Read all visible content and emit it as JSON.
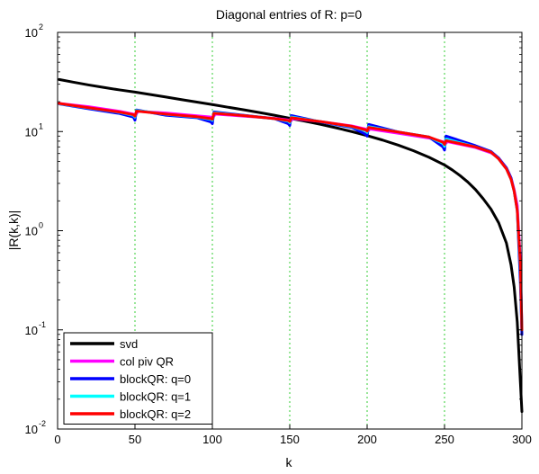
{
  "chart_data": {
    "type": "line",
    "title": "Diagonal entries of R: p=0",
    "xlabel": "k",
    "ylabel": "|R(k,k)|",
    "xlim": [
      0,
      300
    ],
    "ylim": [
      0.01,
      100
    ],
    "yscale": "log",
    "x_ticks": [
      0,
      50,
      100,
      150,
      200,
      250,
      300
    ],
    "y_ticks": [
      {
        "base": "10",
        "exp": "-2",
        "value": 0.01
      },
      {
        "base": "10",
        "exp": "-1",
        "value": 0.1
      },
      {
        "base": "10",
        "exp": "0",
        "value": 1
      },
      {
        "base": "10",
        "exp": "1",
        "value": 10
      },
      {
        "base": "10",
        "exp": "2",
        "value": 100
      }
    ],
    "vlines": [
      50,
      100,
      150,
      200,
      250
    ],
    "vline_color": "#33cc33",
    "legend_position": "bottom-left",
    "series": [
      {
        "name": "svd",
        "color": "#000000",
        "x": [
          1,
          10,
          20,
          30,
          40,
          50,
          60,
          70,
          80,
          90,
          100,
          110,
          120,
          130,
          140,
          150,
          160,
          170,
          180,
          190,
          200,
          210,
          220,
          230,
          240,
          250,
          255,
          260,
          265,
          270,
          275,
          280,
          285,
          290,
          293,
          295,
          297,
          298,
          299,
          300
        ],
        "y": [
          33.5,
          31.5,
          29.5,
          27.8,
          26.3,
          25.0,
          23.6,
          22.3,
          21.0,
          19.8,
          18.7,
          17.6,
          16.6,
          15.6,
          14.6,
          13.6,
          12.7,
          11.8,
          10.9,
          10.0,
          9.1,
          8.2,
          7.3,
          6.4,
          5.5,
          4.6,
          4.1,
          3.6,
          3.1,
          2.6,
          2.1,
          1.65,
          1.2,
          0.75,
          0.45,
          0.27,
          0.12,
          0.06,
          0.03,
          0.015
        ]
      },
      {
        "name": "col piv QR",
        "color": "#ff00ff",
        "x": [
          1,
          20,
          40,
          49,
          50,
          52,
          70,
          90,
          99,
          100,
          102,
          120,
          140,
          149,
          150,
          152,
          170,
          190,
          199,
          200,
          202,
          220,
          240,
          249,
          250,
          252,
          270,
          280,
          285,
          290,
          293,
          295,
          297,
          299,
          300
        ],
        "y": [
          19.2,
          17.8,
          16.0,
          15.0,
          14.3,
          16.0,
          15.4,
          14.4,
          14.0,
          13.6,
          15.0,
          14.3,
          13.6,
          13.1,
          12.4,
          13.5,
          12.6,
          11.4,
          10.6,
          10.0,
          10.6,
          9.6,
          8.6,
          7.9,
          7.4,
          7.9,
          6.9,
          6.1,
          5.4,
          4.3,
          3.4,
          2.6,
          1.8,
          0.5,
          0.1
        ]
      },
      {
        "name": "blockQR: q=0",
        "color": "#0000ff",
        "x": [
          1,
          20,
          40,
          49,
          50,
          51,
          70,
          90,
          99,
          100,
          101,
          120,
          140,
          149,
          150,
          151,
          170,
          190,
          199,
          200,
          201,
          220,
          240,
          249,
          250,
          251,
          270,
          280,
          285,
          290,
          293,
          295,
          297,
          299,
          300
        ],
        "y": [
          19.0,
          17.0,
          15.2,
          14.0,
          13.0,
          16.5,
          14.6,
          13.8,
          12.5,
          12.0,
          15.8,
          14.6,
          13.5,
          12.0,
          11.5,
          14.5,
          12.5,
          11.0,
          9.4,
          9.0,
          11.8,
          9.9,
          8.8,
          7.0,
          6.5,
          9.0,
          7.2,
          6.3,
          5.4,
          4.3,
          3.4,
          2.5,
          1.6,
          0.3,
          0.09
        ]
      },
      {
        "name": "blockQR: q=1",
        "color": "#00ffff",
        "x": [
          1,
          20,
          40,
          49,
          50,
          51,
          70,
          90,
          99,
          100,
          101,
          120,
          140,
          149,
          150,
          151,
          170,
          190,
          199,
          200,
          201,
          220,
          240,
          249,
          250,
          251,
          270,
          280,
          285,
          290,
          293,
          295,
          297,
          299,
          300
        ],
        "y": [
          19.1,
          17.3,
          15.6,
          14.6,
          14.0,
          16.3,
          14.9,
          14.0,
          13.3,
          13.0,
          15.5,
          14.5,
          13.5,
          12.7,
          12.3,
          14.0,
          12.6,
          11.2,
          10.2,
          9.8,
          11.2,
          9.9,
          8.8,
          7.6,
          7.1,
          8.4,
          7.0,
          6.2,
          5.3,
          4.2,
          3.3,
          2.5,
          1.6,
          0.4,
          0.1
        ]
      },
      {
        "name": "blockQR: q=2",
        "color": "#ff0000",
        "x": [
          1,
          20,
          40,
          49,
          50,
          51,
          70,
          90,
          99,
          100,
          101,
          120,
          140,
          149,
          150,
          151,
          170,
          190,
          199,
          200,
          201,
          220,
          240,
          249,
          250,
          251,
          270,
          280,
          285,
          290,
          293,
          295,
          297,
          299,
          300
        ],
        "y": [
          19.2,
          17.4,
          15.7,
          14.8,
          14.3,
          16.1,
          15.0,
          14.1,
          13.5,
          13.3,
          15.3,
          14.5,
          13.5,
          12.9,
          12.6,
          13.8,
          12.6,
          11.3,
          10.4,
          10.1,
          11.0,
          9.9,
          8.8,
          7.8,
          7.4,
          8.1,
          7.0,
          6.2,
          5.3,
          4.2,
          3.3,
          2.5,
          1.6,
          0.45,
          0.1
        ]
      }
    ]
  }
}
